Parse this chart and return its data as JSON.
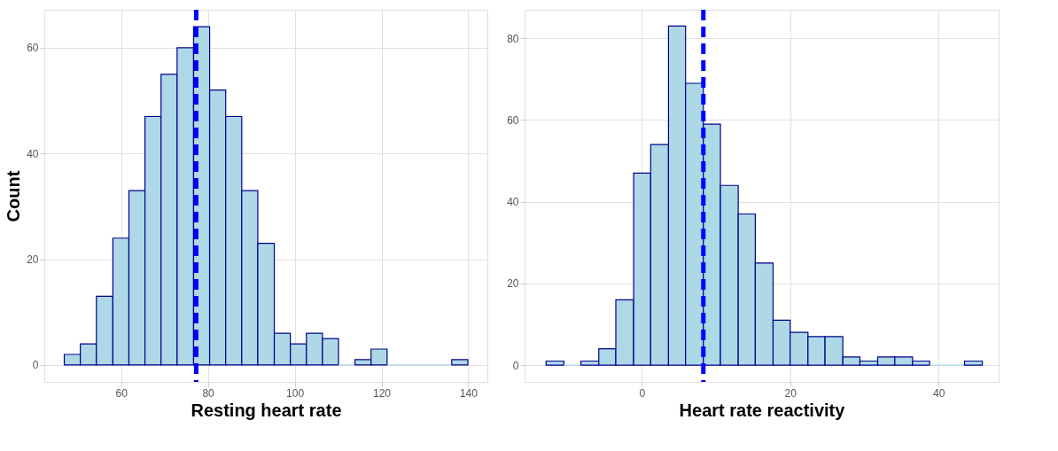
{
  "chart_data": [
    {
      "type": "histogram",
      "xlabel": "Resting heart rate",
      "ylabel": "Count",
      "bins": [
        46.9,
        50.6,
        54.3,
        58.1,
        61.8,
        65.5,
        69.2,
        72.9,
        76.7,
        80.4,
        84.1,
        87.8,
        91.5,
        95.3,
        99.0,
        102.7,
        106.4,
        110.1,
        113.9,
        117.6,
        121.3,
        125.0,
        128.7,
        132.5,
        136.2,
        139.9
      ],
      "values": [
        2,
        4,
        13,
        24,
        33,
        47,
        55,
        60,
        64,
        52,
        47,
        33,
        23,
        6,
        4,
        6,
        5,
        0,
        1,
        3,
        0,
        0,
        0,
        0,
        1
      ],
      "color": "#add8e6",
      "xlim": [
        42.3,
        144.4
      ],
      "xticks": [
        60,
        80,
        100,
        120,
        140
      ],
      "ylim": [
        -3.2,
        67.2
      ],
      "yticks": [
        0,
        20,
        40,
        60
      ],
      "grid": true,
      "ref_lines": [
        {
          "axis": "x",
          "value": 77.3,
          "color": "#0000ff",
          "line_style": "dashed"
        }
      ]
    },
    {
      "type": "histogram",
      "xlabel": "Heart rate reactivity",
      "bins": [
        -12.9,
        -10.5,
        -8.2,
        -5.8,
        -3.5,
        -1.1,
        1.2,
        3.6,
        5.9,
        8.3,
        10.6,
        13.0,
        15.3,
        17.7,
        20.0,
        22.4,
        24.7,
        27.1,
        29.4,
        31.8,
        34.1,
        36.5,
        38.8,
        41.2,
        43.5,
        45.9
      ],
      "values": [
        1,
        0,
        1,
        4,
        16,
        47,
        54,
        83,
        69,
        59,
        44,
        37,
        25,
        11,
        8,
        7,
        7,
        2,
        1,
        2,
        2,
        1,
        0,
        0,
        1
      ],
      "color": "#add8e6",
      "xlim": [
        -15.8,
        48.1
      ],
      "xticks": [
        0,
        20,
        40
      ],
      "ylim": [
        -4.1,
        87
      ],
      "yticks": [
        0,
        20,
        40,
        60,
        80
      ],
      "grid": true,
      "ref_lines": [
        {
          "axis": "x",
          "value": 8.3,
          "color": "#0000ff",
          "line_style": "dashed"
        }
      ]
    }
  ]
}
